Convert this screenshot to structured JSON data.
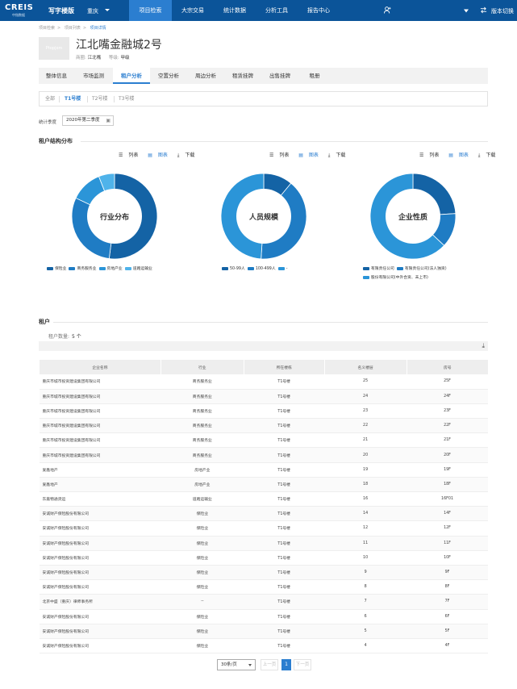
{
  "colors": {
    "primary": "#0b5499",
    "accent": "#2b7ed0",
    "seg1": "#1463a5",
    "seg2": "#1f7cc4",
    "seg3": "#2b95d8",
    "seg4": "#4fb3ea"
  },
  "header": {
    "logo_text": "CREIS",
    "logo_sub": "中指数据",
    "edition": "写字楼版",
    "city": "重庆",
    "nav": [
      "项目检索",
      "大宗交易",
      "统计数据",
      "分析工具",
      "报告中心"
    ],
    "version": "版本切换"
  },
  "breadcrumb": [
    "项目检索",
    "项目列表",
    "项目详情"
  ],
  "project": {
    "thumb_text": "Ptopjxm",
    "title": "江北嘴金融城2号",
    "district_label": "商圈:",
    "district": "江北嘴",
    "grade_label": "等级:",
    "grade": "甲级"
  },
  "tabs": [
    "整体信息",
    "市场监测",
    "租户分析",
    "空置分析",
    "周边分析",
    "租赁挂牌",
    "出售挂牌",
    "租册"
  ],
  "subtabs": [
    "全部",
    "T1号楼",
    "T2号楼",
    "T3号楼"
  ],
  "stat": {
    "label": "统计季度",
    "value": "2020年第二季度"
  },
  "structure": {
    "title": "租户结构分布",
    "tools": {
      "list": "列表",
      "chart": "图表",
      "download": "下载"
    }
  },
  "chart_data": [
    {
      "type": "pie",
      "title": "行业分布",
      "categories": [
        "保险业",
        "商务服务业",
        "房地产业",
        "道路运输业"
      ],
      "values": [
        52,
        30,
        12,
        6
      ]
    },
    {
      "type": "pie",
      "title": "人员规模",
      "categories": [
        "50-99人",
        "100-499人",
        "-"
      ],
      "values": [
        11,
        40,
        49
      ]
    },
    {
      "type": "pie",
      "title": "企业性质",
      "categories": [
        "有限责任公司",
        "有限责任公司(法人独资)",
        "股份有限公司(中外合资、未上市)"
      ],
      "values": [
        24,
        13,
        63
      ]
    }
  ],
  "tenants": {
    "title": "租户",
    "count_label": "租户数量:",
    "count": "5 个",
    "columns": [
      "企业名称",
      "行业",
      "所在楼栋",
      "名义楼层",
      "房号"
    ],
    "rows": [
      [
        "重庆市城市投资建设集团有限公司",
        "商务服务业",
        "T1号楼",
        "25",
        "25F"
      ],
      [
        "重庆市城市投资建设集团有限公司",
        "商务服务业",
        "T1号楼",
        "24",
        "24F"
      ],
      [
        "重庆市城市投资建设集团有限公司",
        "商务服务业",
        "T1号楼",
        "23",
        "23F"
      ],
      [
        "重庆市城市投资建设集团有限公司",
        "商务服务业",
        "T1号楼",
        "22",
        "22F"
      ],
      [
        "重庆市城市投资建设集团有限公司",
        "商务服务业",
        "T1号楼",
        "21",
        "21F"
      ],
      [
        "重庆市城市投资建设集团有限公司",
        "商务服务业",
        "T1号楼",
        "20",
        "20F"
      ],
      [
        "爱鑫地产",
        "房地产业",
        "T1号楼",
        "19",
        "19F"
      ],
      [
        "爱鑫地产",
        "房地产业",
        "T1号楼",
        "18",
        "18F"
      ],
      [
        "东嘉物通货运",
        "道路运输业",
        "T1号楼",
        "16",
        "16F01"
      ],
      [
        "安诚财产保险股份有限公司",
        "保险业",
        "T1号楼",
        "14",
        "14F"
      ],
      [
        "安诚财产保险股份有限公司",
        "保险业",
        "T1号楼",
        "12",
        "12F"
      ],
      [
        "安诚财产保险股份有限公司",
        "保险业",
        "T1号楼",
        "11",
        "11F"
      ],
      [
        "安诚财产保险股份有限公司",
        "保险业",
        "T1号楼",
        "10",
        "10F"
      ],
      [
        "安诚财产保险股份有限公司",
        "保险业",
        "T1号楼",
        "9",
        "9F"
      ],
      [
        "安诚财产保险股份有限公司",
        "保险业",
        "T1号楼",
        "8",
        "8F"
      ],
      [
        "北京中盛（重庆）律师事务所",
        "--",
        "T1号楼",
        "7",
        "7F"
      ],
      [
        "安诚财产保险股份有限公司",
        "保险业",
        "T1号楼",
        "6",
        "6F"
      ],
      [
        "安诚财产保险股份有限公司",
        "保险业",
        "T1号楼",
        "5",
        "5F"
      ],
      [
        "安诚财产保险股份有限公司",
        "保险业",
        "T1号楼",
        "4",
        "4F"
      ]
    ]
  },
  "pager": {
    "size": "30条/页",
    "prev": "上一页",
    "page": "1",
    "next": "下一页"
  }
}
